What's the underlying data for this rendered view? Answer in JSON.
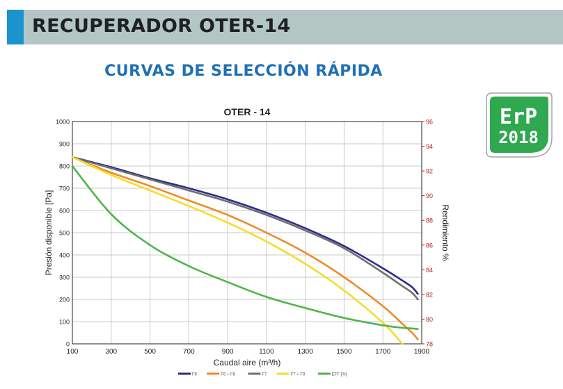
{
  "header": {
    "title": "RECUPERADOR OTER-14"
  },
  "subtitle": "CURVAS DE SELECCIÓN RÁPIDA",
  "badge": {
    "line1": "ErP",
    "line2": "2018",
    "color": "#2fa84f"
  },
  "colors": {
    "header_bg": "#b3c6c3",
    "header_accent": "#1a93cf",
    "subtitle": "#1f6fb5",
    "right_axis": "#c0202a"
  },
  "chart_data": {
    "type": "line",
    "title": "OTER - 14",
    "xlabel": "Caudal aire (m³/h)",
    "ylabel": "Presión disponible [Pa]",
    "y2label": "Rendimiento %",
    "xlim": [
      100,
      1900
    ],
    "ylim": [
      0,
      1000
    ],
    "y2lim": [
      78,
      96
    ],
    "grid": true,
    "legend_position": "bottom",
    "x_ticks": [
      "100",
      "300",
      "500",
      "700",
      "900",
      "1100",
      "1300",
      "1500",
      "1700",
      "1900"
    ],
    "y_ticks": [
      "0",
      "100",
      "200",
      "300",
      "400",
      "500",
      "600",
      "700",
      "800",
      "900",
      "1000"
    ],
    "y2_ticks": [
      "78",
      "80",
      "82",
      "84",
      "86",
      "88",
      "90",
      "92",
      "94",
      "96"
    ],
    "x": [
      100,
      300,
      500,
      700,
      900,
      1100,
      1300,
      1500,
      1700,
      1800,
      1850,
      1880
    ],
    "series": [
      {
        "name": "F6",
        "axis": "left",
        "color": "#2b2c8c",
        "values": [
          840,
          795,
          745,
          700,
          650,
          590,
          520,
          440,
          340,
          285,
          255,
          225
        ]
      },
      {
        "name": "F6 + F8",
        "axis": "left",
        "color": "#f08a24",
        "values": [
          840,
          770,
          710,
          645,
          580,
          500,
          410,
          300,
          170,
          90,
          50,
          20
        ]
      },
      {
        "name": "F7",
        "axis": "left",
        "color": "#6f6f6f",
        "values": [
          840,
          790,
          740,
          690,
          640,
          580,
          510,
          430,
          320,
          260,
          230,
          200
        ]
      },
      {
        "name": "F7 + F9",
        "axis": "left",
        "color": "#f3de2a",
        "values": [
          840,
          760,
          690,
          620,
          545,
          460,
          360,
          240,
          95,
          0,
          null,
          null
        ]
      },
      {
        "name": "EFF [%]",
        "axis": "right",
        "color": "#4fb548",
        "values": [
          92.4,
          88.5,
          86.0,
          84.3,
          83.0,
          81.8,
          80.9,
          80.1,
          79.5,
          79.3,
          79.25,
          79.2
        ]
      }
    ]
  }
}
